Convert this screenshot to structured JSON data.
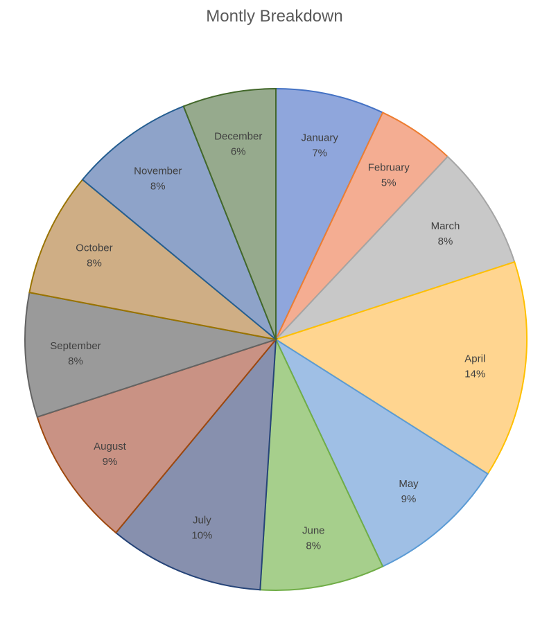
{
  "chart_data": {
    "type": "pie",
    "title": "Montly Breakdown",
    "slices": [
      {
        "label": "January",
        "pct_label": "7%",
        "value": 7,
        "color": "#8fa6dc",
        "stroke": "#4472c4"
      },
      {
        "label": "February",
        "pct_label": "5%",
        "value": 5,
        "color": "#f4ad92",
        "stroke": "#ed7d31"
      },
      {
        "label": "March",
        "pct_label": "8%",
        "value": 8,
        "color": "#c8c8c8",
        "stroke": "#a5a5a5"
      },
      {
        "label": "April",
        "pct_label": "14%",
        "value": 14,
        "color": "#ffd590",
        "stroke": "#ffc000"
      },
      {
        "label": "May",
        "pct_label": "9%",
        "value": 9,
        "color": "#9fbfe5",
        "stroke": "#5b9bd5"
      },
      {
        "label": "June",
        "pct_label": "8%",
        "value": 8,
        "color": "#a6cf8c",
        "stroke": "#70ad47"
      },
      {
        "label": "July",
        "pct_label": "10%",
        "value": 10,
        "color": "#8790ae",
        "stroke": "#264478"
      },
      {
        "label": "August",
        "pct_label": "9%",
        "value": 9,
        "color": "#c99284",
        "stroke": "#9e480e"
      },
      {
        "label": "September",
        "pct_label": "8%",
        "value": 8,
        "color": "#9a9a9a",
        "stroke": "#636363"
      },
      {
        "label": "October",
        "pct_label": "8%",
        "value": 8,
        "color": "#cfae85",
        "stroke": "#997300"
      },
      {
        "label": "November",
        "pct_label": "8%",
        "value": 8,
        "color": "#8ea3c9",
        "stroke": "#255e91"
      },
      {
        "label": "December",
        "pct_label": "6%",
        "value": 6,
        "color": "#96aa8d",
        "stroke": "#43682b"
      }
    ]
  }
}
